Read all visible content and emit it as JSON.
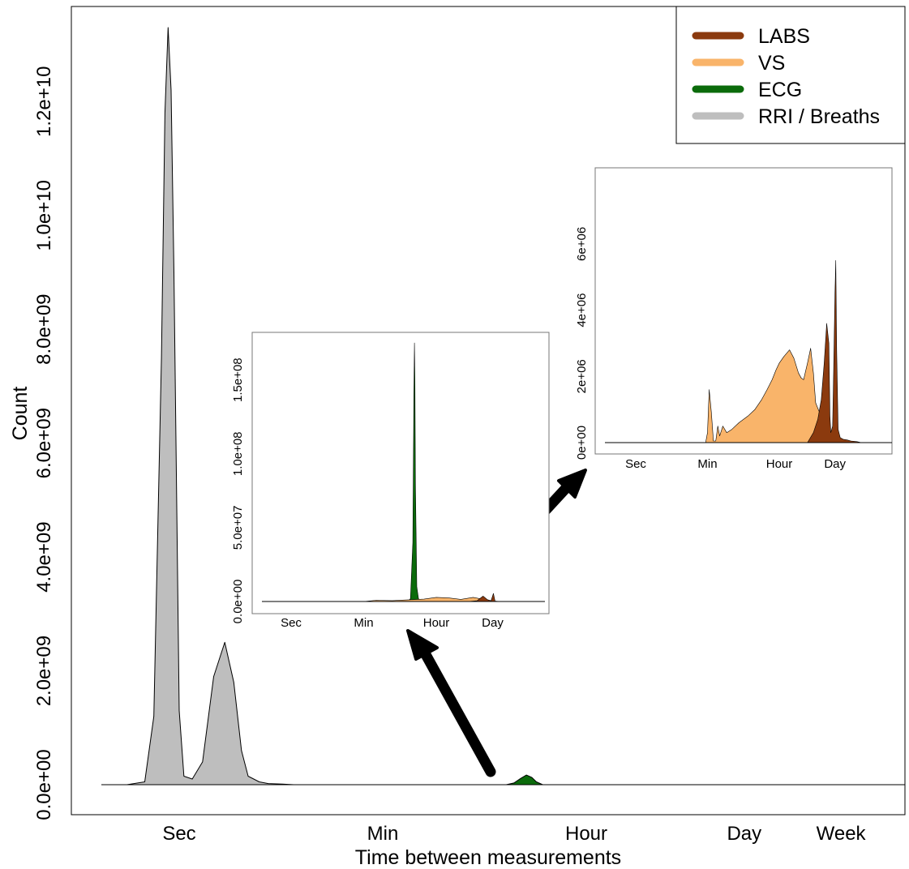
{
  "chart_data": [
    {
      "type": "area",
      "id": "main",
      "title": "",
      "xlabel": "Time between measurements",
      "ylabel": "Count",
      "x_scale": "log",
      "xlim": [
        "0.25 Sec",
        "4 Week"
      ],
      "ylim": [
        0,
        13500000000
      ],
      "x_ticks": [
        "Sec",
        "Min",
        "Hour",
        "Day",
        "Week"
      ],
      "y_ticks": [
        "0.0e+00",
        "2.0e+09",
        "4.0e+09",
        "6.0e+09",
        "8.0e+09",
        "1.0e+10",
        "1.2e+10"
      ],
      "y_tick_values": [
        0,
        2000000000,
        4000000000,
        6000000000,
        8000000000,
        10000000000,
        12000000000
      ],
      "legend": {
        "position": "top-right",
        "entries": [
          {
            "name": "LABS",
            "color": "#8B3A0E"
          },
          {
            "name": "VS",
            "color": "#F9B46A"
          },
          {
            "name": "ECG",
            "color": "#0B6B0B"
          },
          {
            "name": "RRI / Breaths",
            "color": "#BEBEBE"
          }
        ]
      },
      "series": [
        {
          "name": "RRI / Breaths",
          "color": "#BEBEBE",
          "x": [
            "0.35 Sec",
            "0.5 Sec",
            "0.6 Sec",
            "0.7 Sec",
            "0.75 Sec",
            "0.8 Sec",
            "0.85 Sec",
            "0.9 Sec",
            "1 Sec",
            "1.1 Sec",
            "1.3 Sec",
            "1.6 Sec",
            "2 Sec",
            "2.5 Sec",
            "3 Sec",
            "3.5 Sec",
            "4 Sec",
            "5 Sec",
            "6 Sec",
            "8 Sec",
            "10 Sec"
          ],
          "values": [
            0,
            50000000.0,
            1200000000.0,
            7500000000.0,
            11800000000.0,
            13300000000.0,
            12200000000.0,
            9000000000.0,
            1300000000.0,
            150000000.0,
            100000000.0,
            400000000.0,
            1900000000.0,
            2500000000.0,
            1800000000.0,
            600000000.0,
            150000000.0,
            50000000.0,
            20000000.0,
            10000000.0,
            0
          ]
        },
        {
          "name": "ECG",
          "color": "#0B6B0B",
          "x": [
            "12 Min",
            "14 Min",
            "16 Min",
            "18 Min",
            "20 Min",
            "22 Min",
            "25 Min"
          ],
          "values": [
            0,
            30000000.0,
            110000000.0,
            170000000.0,
            130000000.0,
            50000000.0,
            0
          ]
        }
      ]
    },
    {
      "type": "area",
      "id": "inset1",
      "x_scale": "log",
      "ylim": [
        0,
        180000000
      ],
      "x_ticks": [
        "Sec",
        "Min",
        "Hour",
        "Day"
      ],
      "y_ticks": [
        "0.0e+00",
        "5.0e+07",
        "1.0e+08",
        "1.5e+08"
      ],
      "y_tick_values": [
        0,
        50000000,
        100000000,
        150000000
      ],
      "series": [
        {
          "name": "ECG",
          "color": "#0B6B0B",
          "x": [
            "12 Min",
            "14 Min",
            "16 Min",
            "17 Min",
            "17.5 Min",
            "18 Min",
            "18.5 Min",
            "20 Min",
            "22 Min",
            "25 Min"
          ],
          "values": [
            0,
            2000000.0,
            40000000.0,
            140000000.0,
            175000000.0,
            150000000.0,
            80000000.0,
            10000000.0,
            2000000.0,
            0
          ]
        },
        {
          "name": "VS",
          "color": "#F9B46A",
          "x": [
            "1 Min",
            "2 Min",
            "5 Min",
            "10 Min",
            "30 Min",
            "1 Hour",
            "2 Hour",
            "4 Hour",
            "8 Hour",
            "1 Day",
            "2 Day"
          ],
          "values": [
            0,
            800000.0,
            600000.0,
            1000000.0,
            1600000.0,
            2800000.0,
            2400000.0,
            1400000.0,
            2800000.0,
            300000.0,
            0
          ]
        },
        {
          "name": "LABS",
          "color": "#8B3A0E",
          "x": [
            "6 Hour",
            "10 Hour",
            "14 Hour",
            "18 Hour",
            "22 Hour",
            "1.05 Day",
            "1.15 Day",
            "1.3 Day",
            "1.6 Day"
          ],
          "values": [
            0,
            500000.0,
            3600000.0,
            1200000.0,
            500000.0,
            5500000.0,
            300000.0,
            100000.0,
            0
          ]
        }
      ]
    },
    {
      "type": "area",
      "id": "inset2",
      "x_scale": "log",
      "ylim": [
        0,
        7000000
      ],
      "x_ticks": [
        "Sec",
        "Min",
        "Hour",
        "Day"
      ],
      "y_ticks": [
        "0e+00",
        "2e+06",
        "4e+06",
        "6e+06"
      ],
      "y_tick_values": [
        0,
        2000000,
        4000000,
        6000000
      ],
      "series": [
        {
          "name": "VS",
          "color": "#F9B46A",
          "x": [
            "0.9 Min",
            "1 Min",
            "1.1 Min",
            "1.25 Min",
            "1.4 Min",
            "1.6 Min",
            "1.8 Min",
            "2 Min",
            "2.4 Min",
            "3 Min",
            "4 Min",
            "6 Min",
            "10 Min",
            "15 Min",
            "22 Min",
            "30 Min",
            "40 Min",
            "50 Min",
            "1 Hour",
            "1.3 Hour",
            "1.8 Hour",
            "2.3 Hour",
            "3 Hour",
            "3.5 Hour",
            "4 Hour",
            "5 Hour",
            "6 Hour",
            "7 Hour",
            "8 Hour",
            "10 Hour",
            "13 Hour",
            "17 Hour",
            "22 Hour",
            "1.1 Day",
            "1.4 Day",
            "2 Day",
            "3 Day",
            "4.5 Day"
          ],
          "values": [
            0,
            300000.0,
            1600000.0,
            900000.0,
            50000.0,
            50000.0,
            500000.0,
            200000.0,
            500000.0,
            300000.0,
            400000.0,
            600000.0,
            800000.0,
            1000000.0,
            1300000.0,
            1600000.0,
            1900000.0,
            2200000.0,
            2400000.0,
            2600000.0,
            2800000.0,
            2550000.0,
            2100000.0,
            1950000.0,
            1900000.0,
            2400000.0,
            2850000.0,
            2100000.0,
            1200000.0,
            900000.0,
            450000.0,
            250000.0,
            180000.0,
            120000.0,
            80000.0,
            50000.0,
            30000.0,
            0
          ]
        },
        {
          "name": "LABS",
          "color": "#8B3A0E",
          "x": [
            "5 Hour",
            "7 Hour",
            "9 Hour",
            "11 Hour",
            "13 Hour",
            "15 Hour",
            "17 Hour",
            "18 Hour",
            "19 Hour",
            "21 Hour",
            "22 Hour",
            "1 Day",
            "1.05 Day",
            "1.1 Day",
            "1.2 Day",
            "1.35 Day",
            "1.6 Day",
            "2 Day",
            "2.5 Day",
            "3.5 Day",
            "4.5 Day"
          ],
          "values": [
            0,
            300000.0,
            700000.0,
            1300000.0,
            2400000.0,
            3600000.0,
            3000000.0,
            800000.0,
            300000.0,
            500000.0,
            1800000.0,
            4500000.0,
            5500000.0,
            2800000.0,
            400000.0,
            150000.0,
            100000.0,
            80000.0,
            50000.0,
            30000.0,
            0
          ]
        }
      ]
    }
  ]
}
